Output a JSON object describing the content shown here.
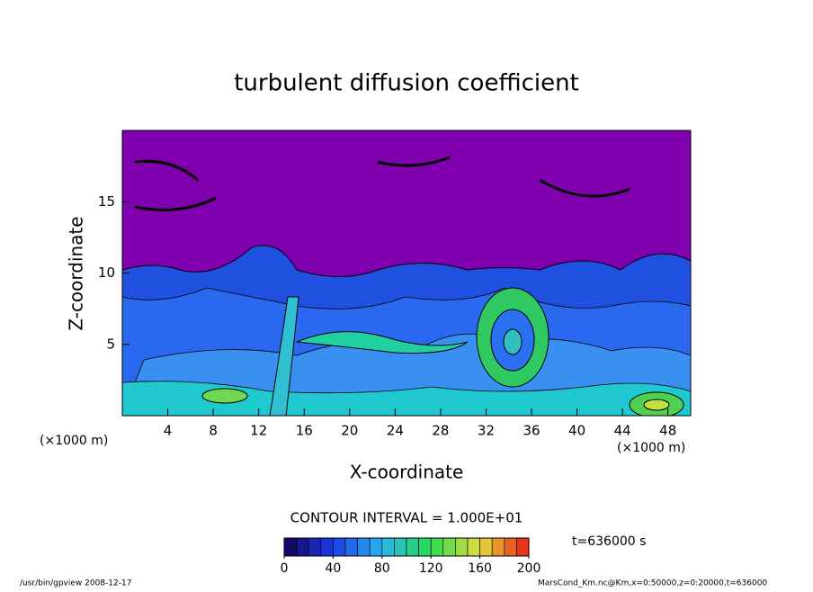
{
  "chart_data": {
    "type": "contour",
    "title": "turbulent diffusion coefficient",
    "xlabel": "X-coordinate",
    "ylabel": "Z-coordinate",
    "x_unit": "(×1000 m)",
    "y_unit": "(×1000 m)",
    "xlim": [
      0,
      50
    ],
    "xticks": [
      4,
      8,
      12,
      16,
      20,
      24,
      28,
      32,
      36,
      40,
      44,
      48
    ],
    "ylim": [
      0,
      20
    ],
    "yticks": [
      5,
      10,
      15
    ],
    "contour_interval": {
      "value": 10,
      "label": "CONTOUR INTERVAL = 1.000E+01"
    },
    "colorbar": {
      "clim": [
        0,
        200
      ],
      "ticks": [
        0,
        40,
        80,
        120,
        160,
        200
      ]
    },
    "time_label": "t=636000 s",
    "footer_left": "/usr/bin/gpview  2008-12-17",
    "footer_right": "MarsCond_Km.nc@Km,x=0:50000,z=0:20000,t=636000"
  }
}
